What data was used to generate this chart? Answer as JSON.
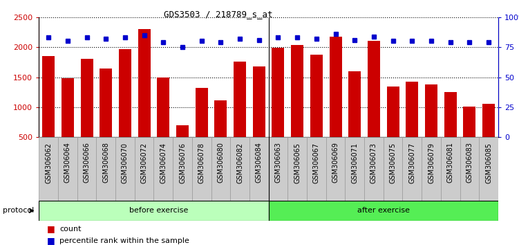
{
  "title": "GDS3503 / 218789_s_at",
  "categories": [
    "GSM306062",
    "GSM306064",
    "GSM306066",
    "GSM306068",
    "GSM306070",
    "GSM306072",
    "GSM306074",
    "GSM306076",
    "GSM306078",
    "GSM306080",
    "GSM306082",
    "GSM306084",
    "GSM306063",
    "GSM306065",
    "GSM306067",
    "GSM306069",
    "GSM306071",
    "GSM306073",
    "GSM306075",
    "GSM306077",
    "GSM306079",
    "GSM306081",
    "GSM306083",
    "GSM306085"
  ],
  "counts": [
    1855,
    1480,
    1800,
    1650,
    1970,
    2300,
    1500,
    700,
    1320,
    1110,
    1760,
    1680,
    1990,
    2040,
    1870,
    2180,
    1600,
    2100,
    1350,
    1420,
    1380,
    1250,
    1010,
    1060
  ],
  "percentiles": [
    83,
    80,
    83,
    82,
    83,
    85,
    79,
    75,
    80,
    79,
    82,
    81,
    83,
    83,
    82,
    86,
    81,
    84,
    80,
    80,
    80,
    79,
    79,
    79
  ],
  "before_count": 12,
  "after_count": 12,
  "bar_color": "#cc0000",
  "dot_color": "#0000cc",
  "before_color": "#bbffbb",
  "after_color": "#55ee55",
  "protocol_label": "protocol",
  "before_label": "before exercise",
  "after_label": "after exercise",
  "ylim_left": [
    500,
    2500
  ],
  "ylim_right": [
    0,
    100
  ],
  "yticks_left": [
    500,
    1000,
    1500,
    2000,
    2500
  ],
  "yticks_right": [
    0,
    25,
    50,
    75,
    100
  ],
  "ytick_labels_right": [
    "0",
    "25",
    "50",
    "75",
    "100%"
  ],
  "legend_count_label": "count",
  "legend_percentile_label": "percentile rank within the sample",
  "background_color": "#ffffff",
  "tick_box_color": "#cccccc",
  "tick_box_edge": "#999999"
}
